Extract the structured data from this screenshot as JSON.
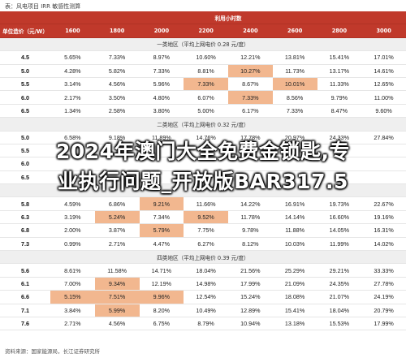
{
  "caption": "表：风电项目 IRR 敏感性测算",
  "header": {
    "hours_label": "利用小时数",
    "cost_label": "单位造价（元/W）",
    "hours": [
      "1600",
      "1800",
      "2000",
      "2200",
      "2400",
      "2600",
      "2800",
      "3000"
    ]
  },
  "regions": [
    {
      "label": "一类地区（平均上网电价 0.28 元/度）",
      "rows": [
        {
          "cost": "4.5",
          "values": [
            "5.65%",
            "7.33%",
            "8.97%",
            "10.60%",
            "12.21%",
            "13.81%",
            "15.41%",
            "17.01%"
          ],
          "hl": []
        },
        {
          "cost": "5.0",
          "values": [
            "4.28%",
            "5.82%",
            "7.33%",
            "8.81%",
            "10.27%",
            "11.73%",
            "13.17%",
            "14.61%"
          ],
          "hl": [
            4
          ]
        },
        {
          "cost": "5.5",
          "values": [
            "3.14%",
            "4.56%",
            "5.96%",
            "7.33%",
            "8.67%",
            "10.01%",
            "11.33%",
            "12.65%"
          ],
          "hl": [
            3,
            5
          ]
        },
        {
          "cost": "6.0",
          "values": [
            "2.17%",
            "3.50%",
            "4.80%",
            "6.07%",
            "7.33%",
            "8.56%",
            "9.79%",
            "11.00%"
          ],
          "hl": [
            4
          ]
        },
        {
          "cost": "6.5",
          "values": [
            "1.34%",
            "2.58%",
            "3.80%",
            "5.00%",
            "6.17%",
            "7.33%",
            "8.47%",
            "9.60%"
          ],
          "hl": []
        }
      ]
    },
    {
      "label": "二类地区（平均上网电价 0.32 元/度）",
      "rows": [
        {
          "cost": "5.0",
          "values": [
            "6.58%",
            "9.18%",
            "11.89%",
            "14.76%",
            "17.78%",
            "20.97%",
            "24.33%",
            "27.84%"
          ],
          "hl": []
        },
        {
          "cost": "5.5",
          "values": [
            "",
            "",
            "",
            "",
            "",
            "",
            "",
            ""
          ],
          "hl": []
        },
        {
          "cost": "6.0",
          "values": [
            "",
            "",
            "",
            "",
            "",
            "",
            "",
            ""
          ],
          "hl": []
        },
        {
          "cost": "6.5",
          "values": [
            "",
            "",
            "",
            "",
            "",
            "",
            "",
            ""
          ],
          "hl": []
        }
      ]
    },
    {
      "label": "",
      "rows": [
        {
          "cost": "5.8",
          "values": [
            "4.59%",
            "6.86%",
            "9.21%",
            "11.66%",
            "14.22%",
            "16.91%",
            "19.73%",
            "22.67%"
          ],
          "hl": [
            2
          ]
        },
        {
          "cost": "6.3",
          "values": [
            "3.19%",
            "5.24%",
            "7.34%",
            "9.52%",
            "11.78%",
            "14.14%",
            "16.60%",
            "19.16%"
          ],
          "hl": [
            1,
            3
          ]
        },
        {
          "cost": "6.8",
          "values": [
            "2.00%",
            "3.87%",
            "5.79%",
            "7.75%",
            "9.78%",
            "11.88%",
            "14.05%",
            "16.31%"
          ],
          "hl": [
            2
          ]
        },
        {
          "cost": "7.3",
          "values": [
            "0.99%",
            "2.71%",
            "4.47%",
            "6.27%",
            "8.12%",
            "10.03%",
            "11.99%",
            "14.02%"
          ],
          "hl": []
        }
      ]
    },
    {
      "label": "四类地区（平均上网电价 0.39 元/度）",
      "rows": [
        {
          "cost": "5.6",
          "values": [
            "8.61%",
            "11.58%",
            "14.71%",
            "18.04%",
            "21.56%",
            "25.29%",
            "29.21%",
            "33.33%"
          ],
          "hl": []
        },
        {
          "cost": "6.1",
          "values": [
            "7.00%",
            "9.34%",
            "12.19%",
            "14.98%",
            "17.99%",
            "21.09%",
            "24.35%",
            "27.78%"
          ],
          "hl": [
            1
          ]
        },
        {
          "cost": "6.6",
          "values": [
            "5.15%",
            "7.51%",
            "9.96%",
            "12.54%",
            "15.24%",
            "18.08%",
            "21.07%",
            "24.19%"
          ],
          "hl": [
            0,
            1,
            2
          ]
        },
        {
          "cost": "7.1",
          "values": [
            "3.84%",
            "5.99%",
            "8.20%",
            "10.49%",
            "12.89%",
            "15.41%",
            "18.04%",
            "20.79%"
          ],
          "hl": [
            1
          ]
        },
        {
          "cost": "7.6",
          "values": [
            "2.71%",
            "4.56%",
            "6.75%",
            "8.79%",
            "10.94%",
            "13.18%",
            "15.53%",
            "17.99%"
          ],
          "hl": []
        }
      ]
    }
  ],
  "watermark": {
    "line1": "2024年澳门大全免费金锁匙,专",
    "line2": "业执行问题_开放版BAR317.5"
  },
  "source": "资料来源：国家能源局，长江证券研究所"
}
